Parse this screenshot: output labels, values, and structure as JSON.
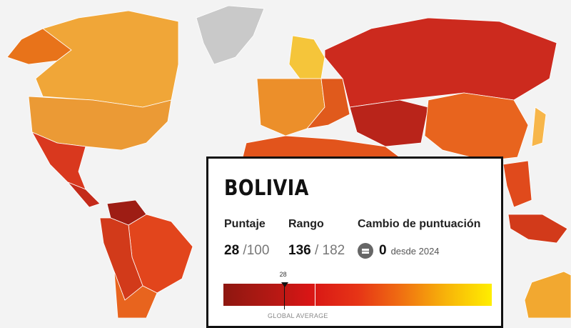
{
  "map": {
    "ocean_color": "#f3f3f3",
    "no_data_color": "#c9c9c9",
    "scale_colors": [
      "#8e1710",
      "#d81515",
      "#ef6a12",
      "#f7b00a",
      "#ffee00"
    ]
  },
  "card": {
    "country": "BOLIVIA",
    "score_label": "Puntaje",
    "score": "28",
    "score_max": "/100",
    "rank_label": "Rango",
    "rank": "136",
    "rank_total": "/ 182",
    "change_label": "Cambio de puntuación",
    "change_icon": "equals-icon",
    "change_value": "0",
    "change_since": "desde 2024",
    "marker_label": "28",
    "score_fraction": 0.28,
    "global_average_label": "GLOBAL AVERAGE"
  }
}
